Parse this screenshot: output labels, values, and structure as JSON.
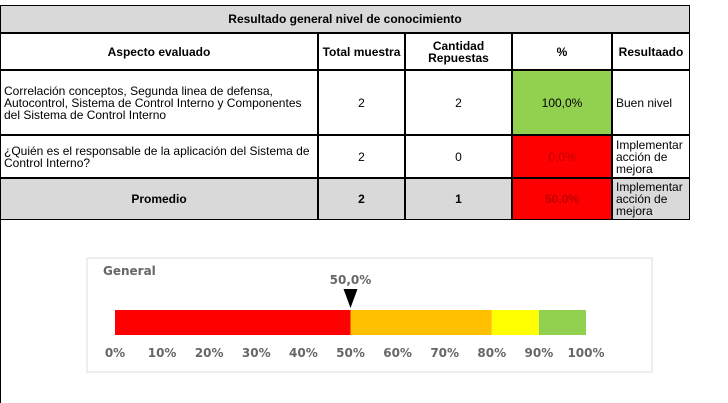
{
  "title": "Resultado general nivel de conocimiento",
  "table": {
    "header": [
      "Aspecto evaluado",
      "Total muestra",
      "Cantidad Repuestas",
      "%",
      "Resultaado"
    ],
    "rows": [
      [
        "Correlación conceptos, Segunda linea de defensa, Autocontrol, Sistema de Control Interno y Componentes del Sistema de Control Interno",
        "2",
        "2",
        "100,0%",
        "Buen nivel"
      ],
      [
        "¿Quién es el responsable de la aplicación del Sistema de Control Interno?",
        "2",
        "0",
        "0,0%",
        "Implementar acción de mejora"
      ]
    ],
    "footer": [
      "Promedio",
      "2",
      "1",
      "50,0%",
      "Implementar acción de mejora"
    ]
  },
  "gauge": {
    "type": "gauge",
    "title": "General",
    "xlim": [
      0,
      100
    ],
    "xticks": [
      {
        "value": 0,
        "label": "0%"
      },
      {
        "value": 10,
        "label": "10%"
      },
      {
        "value": 20,
        "label": "20%"
      },
      {
        "value": 30,
        "label": "30%"
      },
      {
        "value": 40,
        "label": "40%"
      },
      {
        "value": 50,
        "label": "50%"
      },
      {
        "value": 60,
        "label": "60%"
      },
      {
        "value": 70,
        "label": "70%"
      },
      {
        "value": 80,
        "label": "80%"
      },
      {
        "value": 90,
        "label": "90%"
      },
      {
        "value": 100,
        "label": "100%"
      }
    ],
    "segments": [
      {
        "from": 0,
        "to": 50,
        "color": "#ff0000"
      },
      {
        "from": 50,
        "to": 80,
        "color": "#ffc000"
      },
      {
        "from": 80,
        "to": 90,
        "color": "#ffff00"
      },
      {
        "from": 90,
        "to": 100,
        "color": "#92d050"
      }
    ],
    "marker": {
      "value": 50,
      "label": "50,0%"
    }
  }
}
